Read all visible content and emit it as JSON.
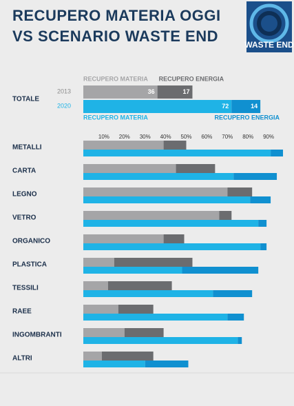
{
  "chart_data": {
    "type": "bar",
    "title": [
      "RECUPERO MATERIA OGGI",
      "VS SCENARIO WASTE END"
    ],
    "logo": "WASTE END",
    "total_label": "TOTALE",
    "years": [
      "2013",
      "2020"
    ],
    "xlim": [
      0,
      100
    ],
    "xticks": [
      {
        "value": 10,
        "label": "10%"
      },
      {
        "value": 20,
        "label": "20%"
      },
      {
        "value": 30,
        "label": "30%"
      },
      {
        "value": 40,
        "label": "40%"
      },
      {
        "value": 50,
        "label": "50%"
      },
      {
        "value": 60,
        "label": "60%"
      },
      {
        "value": 70,
        "label": "70%"
      },
      {
        "value": 80,
        "label": "80%"
      },
      {
        "value": 90,
        "label": "90%"
      }
    ],
    "grid": false,
    "categories": [
      "METALLI",
      "CARTA",
      "LEGNO",
      "VETRO",
      "ORGANICO",
      "PLASTICA",
      "TESSILI",
      "RAEE",
      "INGOMBRANTI",
      "ALTRI"
    ],
    "series": [
      {
        "name": "RECUPERO MATERIA",
        "year": 0,
        "color": "#a5a5a7",
        "total": 36,
        "values": [
          39,
          45,
          70,
          66,
          39,
          15,
          12,
          17,
          20,
          9
        ]
      },
      {
        "name": "RECUPERO ENERGIA",
        "year": 0,
        "color": "#6b6c6f",
        "total": 17,
        "values": [
          11,
          19,
          12,
          6,
          10,
          38,
          31,
          17,
          19,
          25
        ]
      },
      {
        "name": "RECUPERO MATERIA",
        "year": 1,
        "color": "#1fb3e6",
        "total": 72,
        "values": [
          91,
          73,
          81,
          85,
          86,
          48,
          63,
          70,
          75,
          30
        ]
      },
      {
        "name": "RECUPERO ENERGIA",
        "year": 1,
        "color": "#1090d0",
        "total": 14,
        "values": [
          6,
          21,
          10,
          4,
          3,
          37,
          19,
          8,
          2,
          21
        ]
      }
    ]
  }
}
